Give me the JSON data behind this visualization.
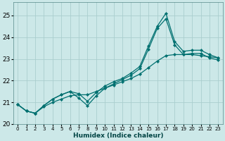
{
  "xlabel": "Humidex (Indice chaleur)",
  "background_color": "#cce8e8",
  "grid_color": "#aacece",
  "line_color": "#007070",
  "xlim": [
    -0.5,
    23.5
  ],
  "ylim": [
    20.0,
    25.6
  ],
  "yticks": [
    20,
    21,
    22,
    23,
    24,
    25
  ],
  "xticks": [
    0,
    1,
    2,
    3,
    4,
    5,
    6,
    7,
    8,
    9,
    10,
    11,
    12,
    13,
    14,
    15,
    16,
    17,
    18,
    19,
    20,
    21,
    22,
    23
  ],
  "s1_x": [
    0,
    1,
    2,
    3,
    4,
    5,
    6,
    7,
    8,
    9,
    10,
    11,
    12,
    13,
    14,
    15,
    16,
    17,
    18,
    19,
    20,
    21,
    22,
    23
  ],
  "s1_y": [
    20.9,
    20.6,
    20.5,
    20.85,
    21.15,
    21.35,
    21.5,
    21.4,
    21.05,
    21.45,
    21.75,
    21.95,
    22.1,
    22.35,
    22.65,
    23.6,
    24.5,
    25.1,
    23.8,
    23.35,
    23.4,
    23.4,
    23.2,
    23.05
  ],
  "s2_x": [
    0,
    1,
    2,
    3,
    4,
    5,
    6,
    7,
    8,
    9,
    10,
    11,
    12,
    13,
    14,
    15,
    16,
    17,
    18,
    19,
    20,
    21,
    22,
    23
  ],
  "s2_y": [
    20.9,
    20.6,
    20.5,
    20.85,
    21.15,
    21.35,
    21.5,
    21.2,
    20.85,
    21.3,
    21.65,
    21.85,
    22.05,
    22.25,
    22.55,
    23.45,
    24.4,
    24.85,
    23.65,
    23.2,
    23.25,
    23.25,
    23.05,
    22.95
  ],
  "s3_x": [
    0,
    1,
    2,
    3,
    4,
    5,
    6,
    7,
    8,
    9,
    10,
    11,
    12,
    13,
    14,
    15,
    16,
    17,
    18,
    19,
    20,
    21,
    22,
    23
  ],
  "s3_y": [
    20.9,
    20.6,
    20.5,
    20.8,
    21.0,
    21.15,
    21.3,
    21.35,
    21.35,
    21.5,
    21.65,
    21.8,
    21.95,
    22.1,
    22.3,
    22.6,
    22.9,
    23.15,
    23.2,
    23.2,
    23.2,
    23.15,
    23.1,
    23.05
  ]
}
